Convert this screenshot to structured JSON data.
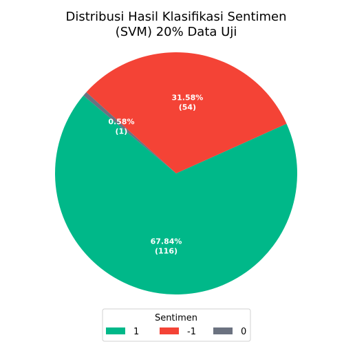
{
  "chart_data": {
    "type": "pie",
    "title": [
      "Distribusi Hasil Klasifikasi Sentimen",
      "(SVM) 20% Data Uji"
    ],
    "slices": [
      {
        "label": "1",
        "count": 116,
        "percent_label": "67.84%",
        "count_label": "(116)",
        "color": "#00b889"
      },
      {
        "label": "-1",
        "count": 54,
        "percent_label": "31.58%",
        "count_label": "(54)",
        "color": "#f44336"
      },
      {
        "label": "0",
        "count": 1,
        "percent_label": "0.58%",
        "count_label": "(1)",
        "color": "#6b7280"
      }
    ],
    "start_angle_deg": 140,
    "direction": "counterclockwise",
    "legend": {
      "title": "Sentimen",
      "placement": "bottom-center",
      "entries": [
        "1",
        "-1",
        "0"
      ]
    }
  }
}
